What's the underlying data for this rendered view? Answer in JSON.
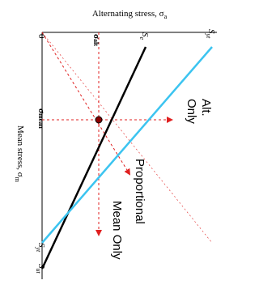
{
  "axes": {
    "alternating_label": "Alternating stress, σ",
    "alternating_sub": "a",
    "mean_label": "Mean stress, σ",
    "mean_sub": "m",
    "origin": "0"
  },
  "points": {
    "sigma_alt": "σ",
    "sigma_alt_sub": "alt",
    "sigma_mean": "σ",
    "sigma_mean_sub": "mean",
    "Se": "S",
    "Se_sub": "e",
    "Syt_top": "S",
    "Syt_top_sub": "yt",
    "Syt_left": "S",
    "Syt_left_sub": "yt",
    "Sut": "S",
    "Sut_sub": "ut"
  },
  "paths": {
    "alt_only": "Alt. Only",
    "proportional": "Proportional",
    "mean_only": "Mean Only"
  }
}
